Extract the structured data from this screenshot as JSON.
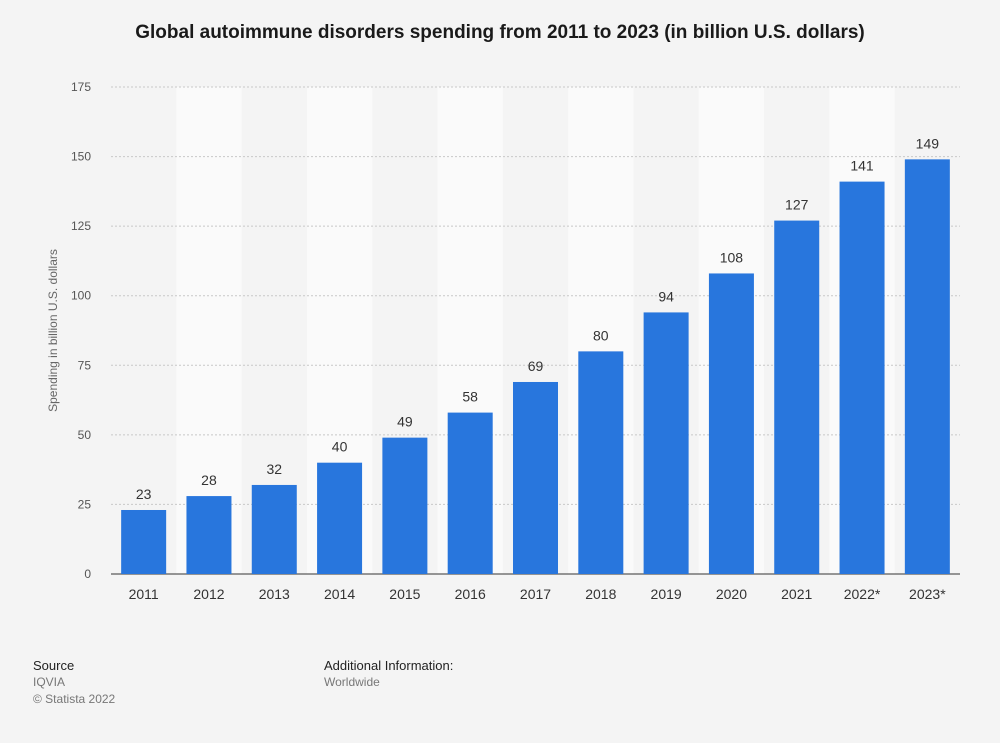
{
  "chart_data": {
    "type": "bar",
    "title": "Global autoimmune disorders spending from 2011 to 2023 (in billion U.S. dollars)",
    "ylabel": "Spending in billion U.S. dollars",
    "xlabel": "",
    "categories": [
      "2011",
      "2012",
      "2013",
      "2014",
      "2015",
      "2016",
      "2017",
      "2018",
      "2019",
      "2020",
      "2021",
      "2022*",
      "2023*"
    ],
    "values": [
      23,
      28,
      32,
      40,
      49,
      58,
      69,
      80,
      94,
      108,
      127,
      141,
      149
    ],
    "ylim": [
      0,
      175
    ],
    "yticks": [
      0,
      25,
      50,
      75,
      100,
      125,
      150,
      175
    ],
    "grid": true,
    "bar_color": "#2876dd",
    "legend": "none"
  },
  "footer": {
    "source_label": "Source",
    "source_value": "IQVIA",
    "copyright": "© Statista 2022",
    "info_label": "Additional Information:",
    "info_value": "Worldwide"
  }
}
